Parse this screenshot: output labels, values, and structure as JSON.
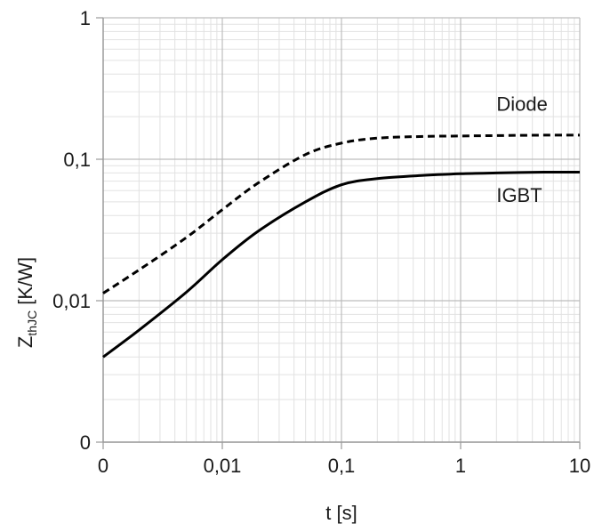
{
  "chart_data": {
    "type": "line",
    "xscale": "log",
    "yscale": "log",
    "xlim": [
      0.001,
      10
    ],
    "ylim": [
      0.001,
      1
    ],
    "grid": true,
    "xlabel": "t [s]",
    "ylabel_main": "Z",
    "ylabel_sub": "thJC",
    "ylabel_unit": " [K/W]",
    "xticks": [
      {
        "value": 0.001,
        "label": "0"
      },
      {
        "value": 0.01,
        "label": "0,01"
      },
      {
        "value": 0.1,
        "label": "0,1"
      },
      {
        "value": 1,
        "label": "1"
      },
      {
        "value": 10,
        "label": "10"
      }
    ],
    "yticks": [
      {
        "value": 0.001,
        "label": "0"
      },
      {
        "value": 0.01,
        "label": "0,01"
      },
      {
        "value": 0.1,
        "label": "0,1"
      },
      {
        "value": 1,
        "label": "1"
      }
    ],
    "series": [
      {
        "name": "Diode",
        "dash": "dashed",
        "color": "#000000",
        "points": [
          [
            0.001,
            0.0113
          ],
          [
            0.002,
            0.0165
          ],
          [
            0.005,
            0.028
          ],
          [
            0.01,
            0.044
          ],
          [
            0.02,
            0.068
          ],
          [
            0.05,
            0.108
          ],
          [
            0.1,
            0.13
          ],
          [
            0.2,
            0.141
          ],
          [
            0.5,
            0.145
          ],
          [
            1,
            0.146
          ],
          [
            2,
            0.147
          ],
          [
            5,
            0.148
          ],
          [
            10,
            0.148
          ]
        ]
      },
      {
        "name": "IGBT",
        "dash": "solid",
        "color": "#000000",
        "points": [
          [
            0.001,
            0.004
          ],
          [
            0.002,
            0.0062
          ],
          [
            0.005,
            0.0115
          ],
          [
            0.01,
            0.0195
          ],
          [
            0.02,
            0.031
          ],
          [
            0.05,
            0.05
          ],
          [
            0.1,
            0.066
          ],
          [
            0.2,
            0.073
          ],
          [
            0.5,
            0.077
          ],
          [
            1,
            0.079
          ],
          [
            2,
            0.08
          ],
          [
            5,
            0.081
          ],
          [
            10,
            0.081
          ]
        ]
      }
    ],
    "annotations": [
      {
        "text": "Diode",
        "x": 2,
        "y": 0.22
      },
      {
        "text": "IGBT",
        "x": 2,
        "y": 0.05
      }
    ]
  }
}
